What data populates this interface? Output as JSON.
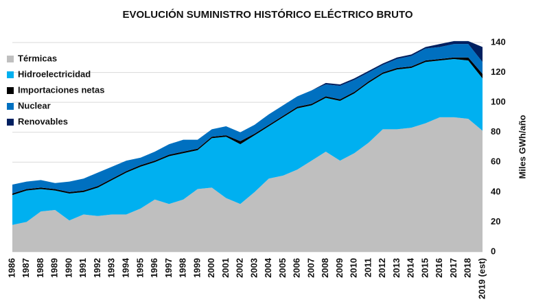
{
  "chart_data": {
    "type": "stacked_area",
    "title": "EVOLUCIÓN SUMINISTRO HISTÓRICO ELÉCTRICO BRUTO",
    "y_axis_label": "Miles GWh/año",
    "categories": [
      "1986",
      "1987",
      "1988",
      "1989",
      "1990",
      "1991",
      "1992",
      "1993",
      "1994",
      "1995",
      "1996",
      "1997",
      "1998",
      "1999",
      "2000",
      "2001",
      "2002",
      "2003",
      "2004",
      "2005",
      "2006",
      "2007",
      "2008",
      "2009",
      "2010",
      "2011",
      "2012",
      "2013",
      "2014",
      "2015",
      "2016",
      "2017",
      "2018",
      "2019 (est)"
    ],
    "series": [
      {
        "name": "Térmicas",
        "color": "#bfbfbf",
        "values": [
          18,
          20,
          27,
          28,
          21,
          25,
          24,
          25,
          25,
          29,
          35,
          32,
          35,
          42,
          43,
          36,
          32,
          40,
          49,
          51,
          55,
          61,
          67,
          61,
          66,
          73,
          82,
          82,
          83,
          86,
          90,
          90,
          89,
          81
        ]
      },
      {
        "name": "Hidroelectricidad",
        "color": "#00b0f0",
        "values": [
          20,
          21,
          15,
          13,
          18,
          15,
          19,
          23,
          28,
          28,
          25,
          32,
          31,
          26,
          33,
          41,
          40,
          38,
          35,
          39,
          41,
          37,
          36,
          40,
          40,
          40,
          37,
          40,
          40,
          41,
          38,
          39,
          39,
          35
        ]
      },
      {
        "name": "Importaciones netas",
        "color": "#000000",
        "values": [
          1,
          1,
          1,
          1,
          1,
          1,
          1,
          1,
          1,
          1,
          1,
          1,
          1,
          1,
          1,
          1,
          2,
          1,
          1,
          1,
          1,
          1,
          1,
          1,
          1,
          1,
          1,
          1,
          1,
          1,
          1,
          1,
          2,
          3
        ]
      },
      {
        "name": "Nuclear",
        "color": "#0070c0",
        "values": [
          6,
          5,
          5,
          4,
          7,
          8,
          9,
          8,
          7,
          5,
          6,
          7,
          8,
          6,
          5,
          6,
          6,
          6,
          7,
          7,
          7,
          9,
          8,
          9,
          8,
          6,
          5,
          6,
          7,
          8,
          8,
          9,
          9,
          8
        ]
      },
      {
        "name": "Renovables",
        "color": "#002060",
        "values": [
          0,
          0,
          0,
          0,
          0,
          0,
          0,
          0,
          0,
          0,
          0,
          0,
          0,
          0,
          0,
          0,
          0,
          0,
          0,
          0,
          0,
          0,
          1,
          1,
          1,
          1,
          1,
          1,
          1,
          1,
          2,
          2,
          2,
          10
        ]
      }
    ],
    "ylim": [
      0,
      140
    ],
    "yticks": [
      0,
      20,
      40,
      60,
      80,
      100,
      120,
      140
    ],
    "grid": true,
    "legend": "upper left"
  }
}
